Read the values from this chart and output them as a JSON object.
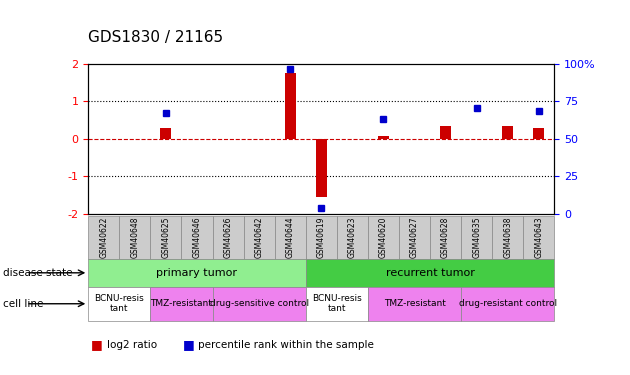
{
  "title": "GDS1830 / 21165",
  "samples": [
    "GSM40622",
    "GSM40648",
    "GSM40625",
    "GSM40646",
    "GSM40626",
    "GSM40642",
    "GSM40644",
    "GSM40619",
    "GSM40623",
    "GSM40620",
    "GSM40627",
    "GSM40628",
    "GSM40635",
    "GSM40638",
    "GSM40643"
  ],
  "log2_ratio": [
    0.0,
    0.0,
    0.3,
    0.0,
    0.0,
    0.0,
    1.75,
    -1.55,
    0.0,
    0.07,
    0.0,
    0.35,
    0.0,
    0.35,
    0.3
  ],
  "percentile_rank": [
    null,
    null,
    0.68,
    null,
    null,
    null,
    1.85,
    -1.85,
    null,
    0.52,
    null,
    null,
    0.82,
    null,
    0.75
  ],
  "disease_state": [
    {
      "label": "primary tumor",
      "start": 0,
      "end": 7,
      "color": "#90EE90"
    },
    {
      "label": "recurrent tumor",
      "start": 7,
      "end": 15,
      "color": "#44CC44"
    }
  ],
  "cell_line": [
    {
      "label": "BCNU-resis\ntant",
      "start": 0,
      "end": 2,
      "color": "#FFFFFF"
    },
    {
      "label": "TMZ-resistant",
      "start": 2,
      "end": 4,
      "color": "#EE82EE"
    },
    {
      "label": "drug-sensitive control",
      "start": 4,
      "end": 7,
      "color": "#EE82EE"
    },
    {
      "label": "BCNU-resis\ntant",
      "start": 7,
      "end": 9,
      "color": "#FFFFFF"
    },
    {
      "label": "TMZ-resistant",
      "start": 9,
      "end": 12,
      "color": "#EE82EE"
    },
    {
      "label": "drug-resistant control",
      "start": 12,
      "end": 15,
      "color": "#EE82EE"
    }
  ],
  "ylim_left": [
    -2,
    2
  ],
  "ylim_right": [
    0,
    100
  ],
  "bar_color": "#CC0000",
  "dot_color": "#0000CC",
  "zero_line_color": "#CC0000",
  "grid_color": "#000000",
  "bg_color": "#FFFFFF",
  "sample_box_color": "#CCCCCC",
  "title_fontsize": 11,
  "axis_fontsize": 9,
  "tick_fontsize": 8
}
